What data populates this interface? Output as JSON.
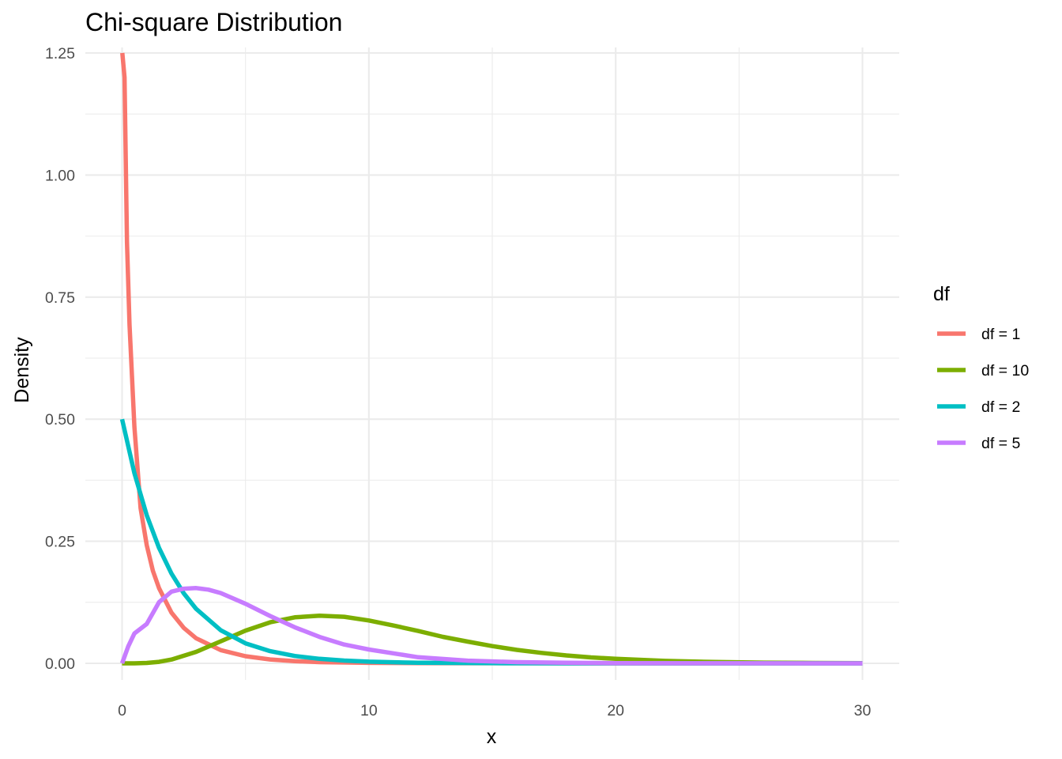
{
  "chart_data": {
    "type": "line",
    "title": "Chi-square Distribution",
    "xlabel": "x",
    "ylabel": "Density",
    "xlim": [
      0,
      30
    ],
    "ylim": [
      0,
      1.25
    ],
    "x_ticks": [
      0,
      10,
      20,
      30
    ],
    "x_tick_labels": [
      "0",
      "10",
      "20",
      "30"
    ],
    "y_ticks": [
      0,
      0.25,
      0.5,
      0.75,
      1.0,
      1.25
    ],
    "y_tick_labels": [
      "0.00",
      "0.25",
      "0.50",
      "0.75",
      "1.00",
      "1.25"
    ],
    "grid": true,
    "legend": {
      "title": "df",
      "position": "right"
    },
    "series": [
      {
        "name": "df = 1",
        "color": "#F8766D",
        "x": [
          0.01,
          0.1,
          0.2,
          0.3,
          0.5,
          0.75,
          1,
          1.25,
          1.5,
          2,
          2.5,
          3,
          4,
          5,
          6,
          7,
          8,
          10,
          12,
          15,
          20,
          25,
          30
        ],
        "y": [
          1.25,
          1.2,
          0.8626,
          0.6939,
          0.4839,
          0.3178,
          0.242,
          0.1894,
          0.1539,
          0.1038,
          0.0725,
          0.0514,
          0.027,
          0.0146,
          0.008,
          0.0045,
          0.0025,
          0.0009,
          0.0003,
          0.0001,
          0.0,
          0.0,
          0.0
        ]
      },
      {
        "name": "df = 10",
        "color": "#7CAE00",
        "x": [
          0,
          0.5,
          1,
          1.5,
          2,
          3,
          4,
          5,
          6,
          7,
          8,
          9,
          10,
          11,
          12,
          13,
          14,
          15,
          16,
          17,
          18,
          19,
          20,
          22,
          24,
          26,
          28,
          30
        ],
        "y": [
          0.0,
          0.0,
          0.0008,
          0.0031,
          0.0077,
          0.0235,
          0.0451,
          0.067,
          0.0841,
          0.0943,
          0.0977,
          0.0953,
          0.0877,
          0.0774,
          0.0663,
          0.0542,
          0.0446,
          0.0353,
          0.0276,
          0.0213,
          0.0162,
          0.0122,
          0.0092,
          0.0051,
          0.0028,
          0.0015,
          0.0008,
          0.0004
        ]
      },
      {
        "name": "df = 2",
        "color": "#00BFC4",
        "x": [
          0,
          0.5,
          1,
          1.5,
          2,
          2.5,
          3,
          4,
          5,
          6,
          7,
          8,
          9,
          10,
          12,
          15,
          20,
          25,
          30
        ],
        "y": [
          0.5,
          0.3894,
          0.3033,
          0.2362,
          0.1839,
          0.1433,
          0.1116,
          0.0677,
          0.041,
          0.0249,
          0.0151,
          0.0092,
          0.0056,
          0.0034,
          0.0012,
          0.0003,
          0.0,
          0.0,
          0.0
        ]
      },
      {
        "name": "df = 5",
        "color": "#C77CFF",
        "x": [
          0,
          0.25,
          0.5,
          1,
          1.5,
          2,
          2.5,
          3,
          3.5,
          4,
          5,
          6,
          7,
          8,
          9,
          10,
          12,
          14,
          16,
          18,
          20,
          25,
          30
        ],
        "y": [
          0.0,
          0.0346,
          0.0612,
          0.0807,
          0.1253,
          0.1468,
          0.1529,
          0.1542,
          0.1509,
          0.1439,
          0.122,
          0.097,
          0.0739,
          0.0541,
          0.0385,
          0.0283,
          0.0125,
          0.0055,
          0.0025,
          0.0011,
          0.0005,
          0.0001,
          0.0
        ]
      }
    ]
  }
}
